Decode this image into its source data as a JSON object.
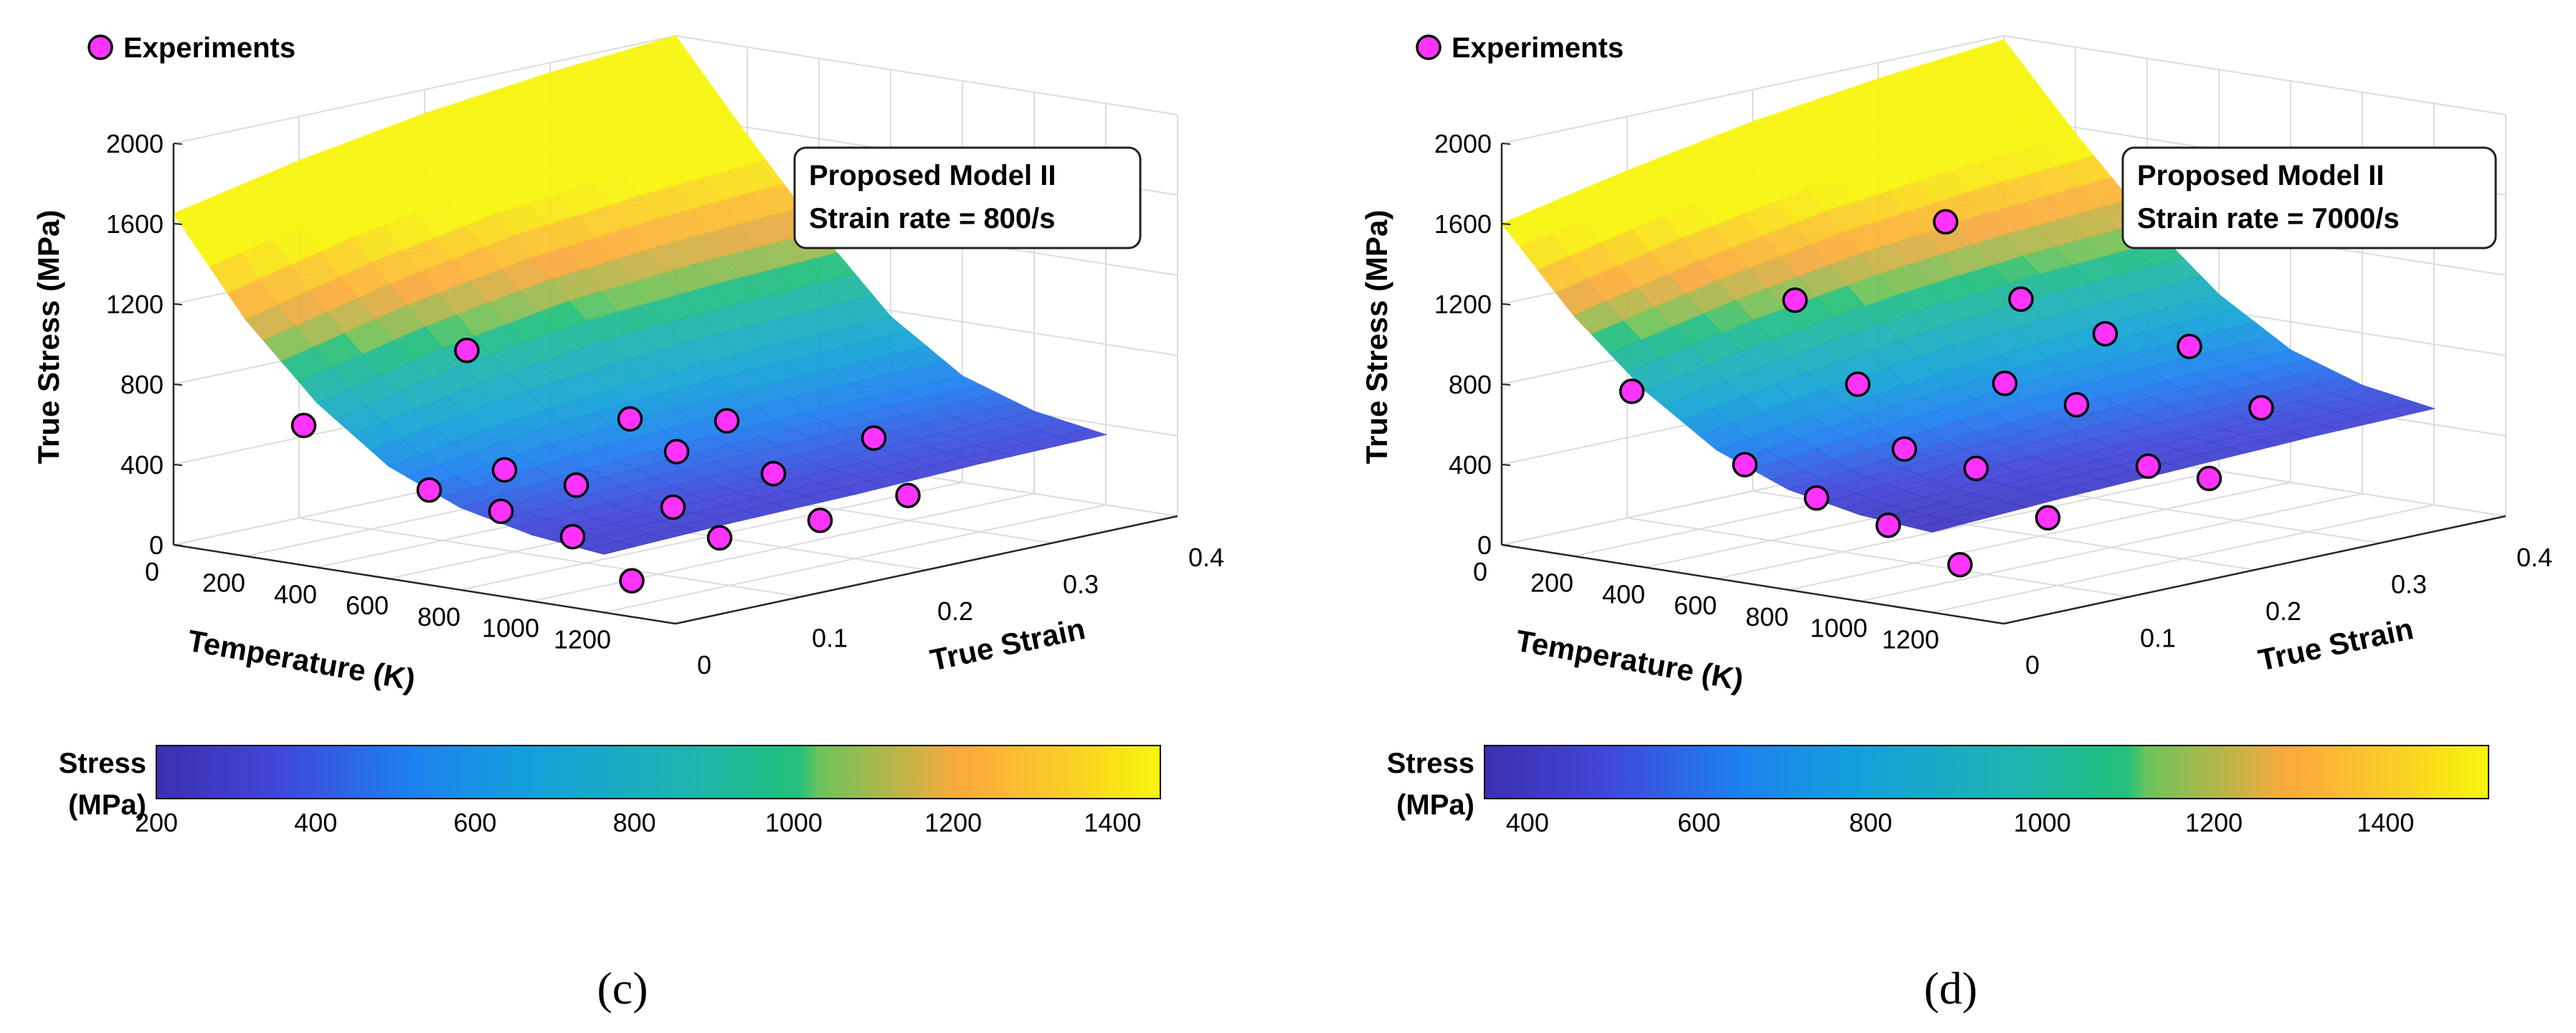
{
  "figure": {
    "panels": [
      "(c)",
      "(d)"
    ]
  },
  "colors": {
    "marker_fill": "#ff33ff",
    "marker_stroke": "#000000",
    "grid": "#dcdcdc",
    "axis": "#262626",
    "surface_low": "#3b2fb0",
    "surface_high": "#f8f50a"
  },
  "chart_data": [
    {
      "type": "surface3d",
      "panel_label": "(c)",
      "legend": "Experiments",
      "annotation": [
        "Proposed Model II",
        "Strain rate = 800/s"
      ],
      "zlabel": "True Stress (MPa)",
      "xlabel": "Temperature (K)",
      "ylabel": "True Strain",
      "z_ticks": [
        "0",
        "400",
        "800",
        "1200",
        "1600",
        "2000"
      ],
      "x_ticks": [
        "0",
        "200",
        "400",
        "600",
        "800",
        "1000",
        "1200"
      ],
      "y_ticks": [
        "0",
        "0.1",
        "0.2",
        "0.3",
        "0.4"
      ],
      "zlim": [
        0,
        2000
      ],
      "xlim": [
        0,
        1400
      ],
      "ylim": [
        0,
        0.4
      ],
      "colorbar": {
        "label": [
          "Stress",
          "(MPa)"
        ],
        "ticks": [
          "200",
          "400",
          "600",
          "800",
          "1000",
          "1200",
          "1400"
        ],
        "range": [
          200,
          1460
        ]
      },
      "surface_z": [
        [
          1650,
          1180,
          820,
          560,
          410,
          330,
          290
        ],
        [
          1780,
          1330,
          960,
          660,
          470,
          360,
          310
        ],
        [
          1880,
          1440,
          1060,
          720,
          500,
          380,
          320
        ],
        [
          1950,
          1510,
          1110,
          750,
          520,
          400,
          340
        ],
        [
          2000,
          1560,
          1140,
          770,
          530,
          410,
          350
        ]
      ],
      "surface_x": [
        0,
        200,
        400,
        600,
        800,
        1000,
        1200
      ],
      "surface_y": [
        0,
        0.1,
        0.2,
        0.3,
        0.4
      ],
      "experiments": [
        {
          "T": 293,
          "strain": 0.02,
          "stress": 650
        },
        {
          "T": 293,
          "strain": 0.15,
          "stress": 850
        },
        {
          "T": 573,
          "strain": 0.04,
          "stress": 380
        },
        {
          "T": 573,
          "strain": 0.1,
          "stress": 400
        },
        {
          "T": 573,
          "strain": 0.2,
          "stress": 520
        },
        {
          "T": 773,
          "strain": 0.04,
          "stress": 330
        },
        {
          "T": 773,
          "strain": 0.1,
          "stress": 380
        },
        {
          "T": 773,
          "strain": 0.18,
          "stress": 440
        },
        {
          "T": 773,
          "strain": 0.22,
          "stress": 540
        },
        {
          "T": 973,
          "strain": 0.04,
          "stress": 260
        },
        {
          "T": 973,
          "strain": 0.12,
          "stress": 300
        },
        {
          "T": 973,
          "strain": 0.2,
          "stress": 360
        },
        {
          "T": 973,
          "strain": 0.28,
          "stress": 430
        },
        {
          "T": 1173,
          "strain": 0.03,
          "stress": 110
        },
        {
          "T": 1173,
          "strain": 0.1,
          "stress": 230
        },
        {
          "T": 1173,
          "strain": 0.18,
          "stress": 210
        },
        {
          "T": 1173,
          "strain": 0.25,
          "stress": 240
        }
      ]
    },
    {
      "type": "surface3d",
      "panel_label": "(d)",
      "legend": "Experiments",
      "annotation": [
        "Proposed Model II",
        "Strain rate = 7000/s"
      ],
      "zlabel": "True Stress (MPa)",
      "xlabel": "Temperature (K)",
      "ylabel": "True Strain",
      "z_ticks": [
        "0",
        "400",
        "800",
        "1200",
        "1600",
        "2000"
      ],
      "x_ticks": [
        "0",
        "200",
        "400",
        "600",
        "800",
        "1000",
        "1200"
      ],
      "y_ticks": [
        "0",
        "0.1",
        "0.2",
        "0.3",
        "0.4"
      ],
      "zlim": [
        0,
        2000
      ],
      "xlim": [
        0,
        1400
      ],
      "ylim": [
        0,
        0.4
      ],
      "colorbar": {
        "label": [
          "Stress",
          "(MPa)"
        ],
        "ticks": [
          "400",
          "600",
          "800",
          "1000",
          "1200",
          "1400"
        ],
        "range": [
          350,
          1520
        ]
      },
      "surface_z": [
        [
          1600,
          1200,
          880,
          640,
          500,
          430,
          400
        ],
        [
          1730,
          1340,
          1000,
          730,
          560,
          470,
          430
        ],
        [
          1840,
          1450,
          1090,
          800,
          610,
          500,
          450
        ],
        [
          1920,
          1520,
          1150,
          850,
          640,
          520,
          470
        ],
        [
          1980,
          1570,
          1190,
          880,
          660,
          540,
          480
        ]
      ],
      "surface_x": [
        0,
        200,
        400,
        600,
        800,
        1000,
        1200
      ],
      "surface_y": [
        0,
        0.1,
        0.2,
        0.3,
        0.4
      ],
      "experiments": [
        {
          "T": 293,
          "strain": 0.02,
          "stress": 820
        },
        {
          "T": 293,
          "strain": 0.15,
          "stress": 1100
        },
        {
          "T": 293,
          "strain": 0.27,
          "stress": 1330
        },
        {
          "T": 573,
          "strain": 0.03,
          "stress": 520
        },
        {
          "T": 573,
          "strain": 0.12,
          "stress": 800
        },
        {
          "T": 573,
          "strain": 0.25,
          "stress": 1050
        },
        {
          "T": 773,
          "strain": 0.03,
          "stress": 410
        },
        {
          "T": 773,
          "strain": 0.1,
          "stress": 560
        },
        {
          "T": 773,
          "strain": 0.18,
          "stress": 780
        },
        {
          "T": 773,
          "strain": 0.26,
          "stress": 920
        },
        {
          "T": 973,
          "strain": 0.03,
          "stress": 330
        },
        {
          "T": 973,
          "strain": 0.1,
          "stress": 520
        },
        {
          "T": 973,
          "strain": 0.18,
          "stress": 730
        },
        {
          "T": 973,
          "strain": 0.27,
          "stress": 900
        },
        {
          "T": 1173,
          "strain": 0.03,
          "stress": 190
        },
        {
          "T": 1173,
          "strain": 0.1,
          "stress": 330
        },
        {
          "T": 1173,
          "strain": 0.18,
          "stress": 480
        },
        {
          "T": 1173,
          "strain": 0.27,
          "stress": 650
        },
        {
          "T": 1273,
          "strain": 0.2,
          "stress": 420
        }
      ]
    }
  ]
}
